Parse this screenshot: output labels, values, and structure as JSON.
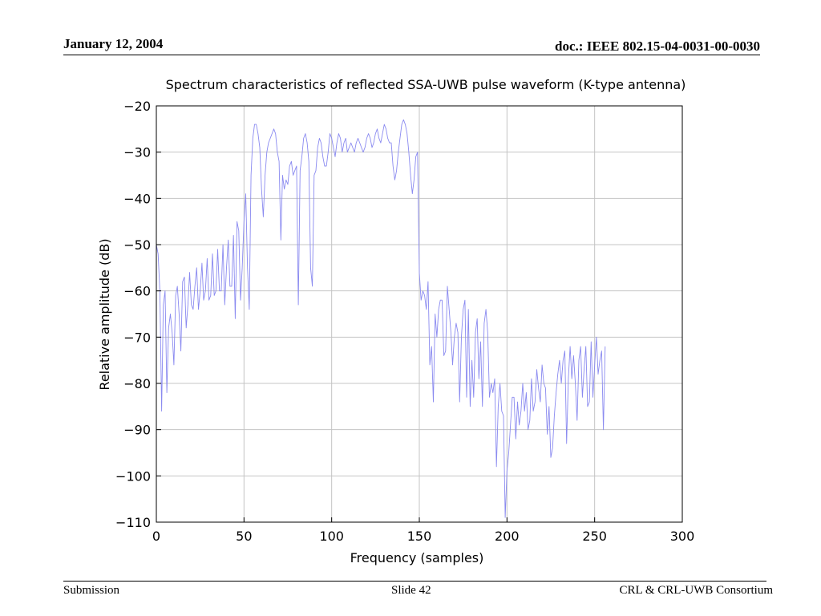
{
  "header": {
    "date": "January 12, 2004",
    "doc_id": "doc.: IEEE 802.15-04-0031-00-0030"
  },
  "footer": {
    "left": "Submission",
    "center": "Slide 42",
    "right": "CRL & CRL-UWB Consortium"
  },
  "colors": {
    "line": "#8a8af0",
    "grid": "#c4c4c4",
    "axis": "#000000"
  },
  "chart_data": {
    "type": "line",
    "title": "Spectrum characteristics of reflected SSA-UWB pulse waveform (K-type antenna)",
    "xlabel": "Frequency (samples)",
    "ylabel": "Relative amplitude (dB)",
    "xlim": [
      0,
      300
    ],
    "ylim": [
      -110,
      -20
    ],
    "xticks": [
      0,
      50,
      100,
      150,
      200,
      250,
      300
    ],
    "yticks": [
      -20,
      -30,
      -40,
      -50,
      -60,
      -70,
      -80,
      -90,
      -100,
      -110
    ],
    "grid": true,
    "series": [
      {
        "x": [
          0,
          1,
          2,
          3,
          4,
          5,
          6,
          7,
          8,
          9,
          10,
          11,
          12,
          13,
          14,
          15,
          16,
          17,
          18,
          19,
          20,
          21,
          22,
          23,
          24,
          25,
          26,
          27,
          28,
          29,
          30,
          31,
          32,
          33,
          34,
          35,
          36,
          37,
          38,
          39,
          40,
          41,
          42,
          43,
          44,
          45,
          46,
          47,
          48,
          49,
          50,
          51,
          52,
          53,
          54,
          55,
          56,
          57,
          58,
          59,
          60,
          61,
          62,
          63,
          64,
          65,
          66,
          67,
          68,
          69,
          70,
          71,
          72,
          73,
          74,
          75,
          76,
          77,
          78,
          79,
          80,
          81,
          82,
          83,
          84,
          85,
          86,
          87,
          88,
          89,
          90,
          91,
          92,
          93,
          94,
          95,
          96,
          97,
          98,
          99,
          100,
          101,
          102,
          103,
          104,
          105,
          106,
          107,
          108,
          109,
          110,
          111,
          112,
          113,
          114,
          115,
          116,
          117,
          118,
          119,
          120,
          121,
          122,
          123,
          124,
          125,
          126,
          127,
          128,
          129,
          130,
          131,
          132,
          133,
          134,
          135,
          136,
          137,
          138,
          139,
          140,
          141,
          142,
          143,
          144,
          145,
          146,
          147,
          148,
          149,
          150,
          151,
          152,
          153,
          154,
          155,
          156,
          157,
          158,
          159,
          160,
          161,
          162,
          163,
          164,
          165,
          166,
          167,
          168,
          169,
          170,
          171,
          172,
          173,
          174,
          175,
          176,
          177,
          178,
          179,
          180,
          181,
          182,
          183,
          184,
          185,
          186,
          187,
          188,
          189,
          190,
          191,
          192,
          193,
          194,
          195,
          196,
          197,
          198,
          199,
          200,
          201,
          202,
          203,
          204,
          205,
          206,
          207,
          208,
          209,
          210,
          211,
          212,
          213,
          214,
          215,
          216,
          217,
          218,
          219,
          220,
          221,
          222,
          223,
          224,
          225,
          226,
          227,
          228,
          229,
          230,
          231,
          232,
          233,
          234,
          235,
          236,
          237,
          238,
          239,
          240,
          241,
          242,
          243,
          244,
          245,
          246,
          247,
          248,
          249,
          250,
          251,
          252,
          253,
          254,
          255,
          256
        ],
        "y": [
          -50,
          -52,
          -60,
          -86,
          -63,
          -60,
          -82,
          -68,
          -65,
          -69,
          -76,
          -61,
          -59,
          -65,
          -73,
          -58,
          -57,
          -68,
          -63,
          -56,
          -63,
          -64,
          -59,
          -55,
          -64,
          -60,
          -54,
          -62,
          -60,
          -53,
          -62,
          -61,
          -52,
          -61,
          -60,
          -51,
          -60,
          -60,
          -50,
          -63,
          -55,
          -49,
          -59,
          -59,
          -48,
          -66,
          -45,
          -47,
          -62,
          -55,
          -45,
          -39,
          -55,
          -64,
          -35,
          -27,
          -24,
          -24,
          -26,
          -29,
          -38,
          -44,
          -35,
          -30,
          -28,
          -27,
          -26,
          -25,
          -26,
          -30,
          -32,
          -49,
          -35,
          -38,
          -36,
          -37,
          -33,
          -32,
          -35,
          -34,
          -33,
          -63,
          -34,
          -31,
          -27,
          -26,
          -28,
          -32,
          -55,
          -59,
          -35,
          -34,
          -29,
          -27,
          -28,
          -31,
          -33,
          -33,
          -30,
          -26,
          -27,
          -29,
          -31,
          -28,
          -26,
          -27,
          -30,
          -28,
          -27,
          -30,
          -29,
          -28,
          -29,
          -30,
          -28,
          -27,
          -28,
          -29,
          -30,
          -29,
          -27,
          -26,
          -27,
          -29,
          -28,
          -26,
          -25,
          -27,
          -28,
          -26,
          -24,
          -25,
          -27,
          -28,
          -28,
          -33,
          -36,
          -34,
          -30,
          -27,
          -24,
          -23,
          -24,
          -26,
          -30,
          -35,
          -39,
          -36,
          -31,
          -30,
          -56,
          -62,
          -60,
          -61,
          -64,
          -58,
          -76,
          -72,
          -84,
          -65,
          -70,
          -64,
          -62,
          -62,
          -74,
          -73,
          -59,
          -64,
          -69,
          -76,
          -70,
          -67,
          -69,
          -84,
          -70,
          -64,
          -62,
          -83,
          -64,
          -85,
          -75,
          -83,
          -69,
          -66,
          -79,
          -71,
          -85,
          -67,
          -64,
          -69,
          -83,
          -80,
          -82,
          -79,
          -98,
          -85,
          -80,
          -86,
          -87,
          -109,
          -99,
          -95,
          -89,
          -83,
          -83,
          -92,
          -84,
          -89,
          -86,
          -80,
          -86,
          -82,
          -90,
          -88,
          -79,
          -86,
          -84,
          -77,
          -81,
          -84,
          -76,
          -80,
          -81,
          -91,
          -85,
          -96,
          -94,
          -87,
          -82,
          -78,
          -75,
          -80,
          -75,
          -73,
          -93,
          -79,
          -72,
          -79,
          -74,
          -80,
          -88,
          -75,
          -72,
          -83,
          -77,
          -72,
          -85,
          -84,
          -71,
          -83,
          -76,
          -70,
          -78,
          -75,
          -73,
          -90,
          -72
        ]
      }
    ]
  }
}
